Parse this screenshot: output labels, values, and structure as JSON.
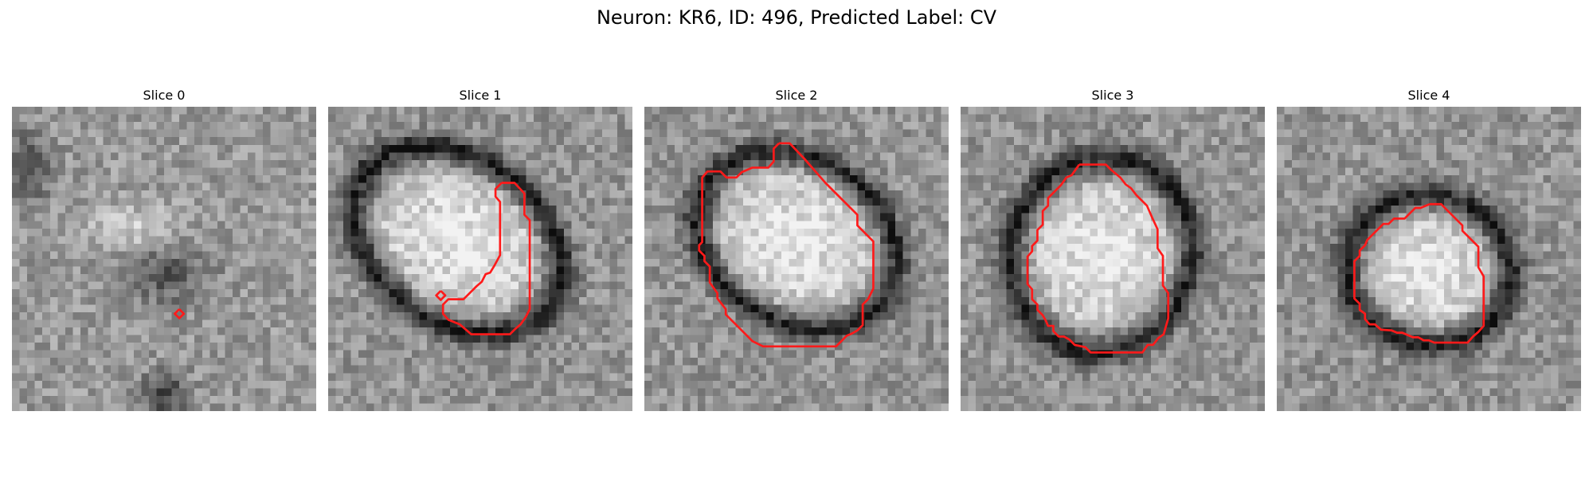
{
  "title": "Neuron: KR6, ID: 496, Predicted Label: CV",
  "contour_color": "#ff1a1a",
  "slices": [
    {
      "title": "Slice 0",
      "contour": [
        [
          [
            22.0,
            26.6
          ],
          [
            22.6,
            27.2
          ],
          [
            22.0,
            27.8
          ],
          [
            21.4,
            27.2
          ],
          [
            22.0,
            26.6
          ]
        ]
      ]
    },
    {
      "title": "Slice 1",
      "contour": [
        [
          [
            22.8,
            10.0
          ],
          [
            24.5,
            10.0
          ],
          [
            25.8,
            11.4
          ],
          [
            25.8,
            14.2
          ],
          [
            26.5,
            14.9
          ],
          [
            26.5,
            26.6
          ],
          [
            26.0,
            27.6
          ],
          [
            25.3,
            28.6
          ],
          [
            24.6,
            29.2
          ],
          [
            23.9,
            29.9
          ],
          [
            18.8,
            29.9
          ],
          [
            17.3,
            28.6
          ],
          [
            15.8,
            28.0
          ],
          [
            15.1,
            27.2
          ],
          [
            15.1,
            26.0
          ],
          [
            15.8,
            25.3
          ],
          [
            17.8,
            25.3
          ],
          [
            18.8,
            24.3
          ],
          [
            19.5,
            23.6
          ],
          [
            20.2,
            23.0
          ],
          [
            20.7,
            22.0
          ],
          [
            21.3,
            21.8
          ],
          [
            21.9,
            20.8
          ],
          [
            22.6,
            19.5
          ],
          [
            22.6,
            12.5
          ],
          [
            22.0,
            11.8
          ],
          [
            22.0,
            10.8
          ],
          [
            22.8,
            10.0
          ]
        ],
        [
          [
            14.8,
            24.2
          ],
          [
            15.4,
            24.8
          ],
          [
            14.8,
            25.4
          ],
          [
            14.2,
            24.8
          ],
          [
            14.8,
            24.2
          ]
        ]
      ]
    },
    {
      "title": "Slice 2",
      "contour": [
        [
          [
            17.7,
            4.8
          ],
          [
            19.1,
            4.8
          ],
          [
            21.0,
            6.8
          ],
          [
            23.8,
            10.0
          ],
          [
            25.2,
            11.4
          ],
          [
            28.0,
            14.2
          ],
          [
            28.0,
            15.6
          ],
          [
            30.1,
            17.7
          ],
          [
            30.1,
            23.9
          ],
          [
            29.4,
            25.3
          ],
          [
            28.7,
            26.0
          ],
          [
            28.7,
            28.7
          ],
          [
            28.0,
            29.4
          ],
          [
            27.3,
            29.8
          ],
          [
            26.6,
            30.1
          ],
          [
            25.9,
            30.8
          ],
          [
            25.2,
            31.5
          ],
          [
            19.5,
            31.5
          ],
          [
            15.6,
            31.5
          ],
          [
            14.2,
            30.8
          ],
          [
            13.5,
            30.1
          ],
          [
            12.1,
            28.7
          ],
          [
            11.4,
            28.0
          ],
          [
            10.7,
            27.3
          ],
          [
            10.7,
            26.6
          ],
          [
            9.6,
            25.2
          ],
          [
            9.6,
            24.5
          ],
          [
            8.6,
            23.1
          ],
          [
            8.6,
            21.0
          ],
          [
            7.9,
            20.3
          ],
          [
            7.9,
            19.6
          ],
          [
            7.2,
            18.9
          ],
          [
            7.2,
            18.2
          ],
          [
            7.6,
            17.8
          ],
          [
            7.6,
            9.3
          ],
          [
            8.3,
            8.5
          ],
          [
            10.0,
            8.5
          ],
          [
            10.8,
            9.3
          ],
          [
            12.1,
            9.3
          ],
          [
            12.8,
            8.6
          ],
          [
            13.5,
            8.3
          ],
          [
            14.2,
            8.0
          ],
          [
            16.3,
            8.0
          ],
          [
            17.0,
            7.2
          ],
          [
            17.0,
            5.5
          ],
          [
            17.7,
            4.8
          ]
        ]
      ]
    },
    {
      "title": "Slice 3",
      "contour": [
        [
          [
            15.6,
            7.6
          ],
          [
            19.1,
            7.6
          ],
          [
            19.8,
            8.3
          ],
          [
            21.0,
            9.3
          ],
          [
            21.7,
            10.2
          ],
          [
            22.4,
            10.7
          ],
          [
            23.1,
            11.6
          ],
          [
            24.5,
            13.0
          ],
          [
            25.2,
            14.6
          ],
          [
            25.9,
            16.1
          ],
          [
            25.9,
            18.6
          ],
          [
            26.6,
            19.6
          ],
          [
            26.6,
            23.5
          ],
          [
            27.3,
            24.5
          ],
          [
            27.3,
            27.8
          ],
          [
            26.7,
            29.9
          ],
          [
            26.0,
            30.4
          ],
          [
            25.3,
            31.3
          ],
          [
            24.6,
            31.3
          ],
          [
            23.9,
            32.3
          ],
          [
            19.9,
            32.3
          ],
          [
            17.1,
            32.3
          ],
          [
            16.4,
            31.6
          ],
          [
            15.0,
            31.3
          ],
          [
            14.3,
            30.6
          ],
          [
            13.6,
            30.2
          ],
          [
            12.9,
            30.2
          ],
          [
            12.2,
            29.5
          ],
          [
            12.2,
            28.8
          ],
          [
            11.5,
            28.8
          ],
          [
            11.2,
            28.1
          ],
          [
            10.8,
            27.4
          ],
          [
            10.1,
            26.7
          ],
          [
            10.1,
            26.0
          ],
          [
            9.4,
            25.3
          ],
          [
            9.4,
            24.0
          ],
          [
            8.8,
            23.3
          ],
          [
            8.8,
            19.7
          ],
          [
            9.4,
            19.0
          ],
          [
            9.4,
            18.3
          ],
          [
            10.1,
            17.6
          ],
          [
            10.1,
            16.2
          ],
          [
            10.8,
            15.5
          ],
          [
            10.8,
            13.7
          ],
          [
            11.5,
            13.0
          ],
          [
            11.5,
            12.0
          ],
          [
            12.2,
            11.3
          ],
          [
            13.2,
            10.3
          ],
          [
            13.9,
            9.3
          ],
          [
            14.6,
            9.0
          ],
          [
            15.6,
            7.6
          ]
        ]
      ]
    },
    {
      "title": "Slice 4",
      "contour": [
        [
          [
            20.1,
            12.8
          ],
          [
            21.6,
            12.8
          ],
          [
            22.3,
            13.5
          ],
          [
            23.0,
            14.2
          ],
          [
            23.7,
            14.9
          ],
          [
            24.4,
            15.6
          ],
          [
            24.4,
            16.3
          ],
          [
            25.1,
            17.0
          ],
          [
            25.8,
            17.7
          ],
          [
            26.5,
            18.4
          ],
          [
            26.5,
            21.1
          ],
          [
            27.2,
            22.3
          ],
          [
            27.2,
            26.1
          ],
          [
            27.2,
            28.8
          ],
          [
            26.5,
            29.6
          ],
          [
            25.8,
            30.2
          ],
          [
            25.1,
            31.0
          ],
          [
            21.4,
            31.0
          ],
          [
            20.7,
            31.0
          ],
          [
            20.0,
            30.7
          ],
          [
            19.3,
            30.7
          ],
          [
            18.6,
            30.3
          ],
          [
            17.9,
            30.3
          ],
          [
            17.2,
            30.0
          ],
          [
            16.5,
            29.7
          ],
          [
            15.8,
            29.7
          ],
          [
            15.1,
            29.4
          ],
          [
            13.7,
            29.3
          ],
          [
            12.9,
            28.6
          ],
          [
            12.2,
            28.6
          ],
          [
            11.6,
            27.9
          ],
          [
            11.6,
            27.2
          ],
          [
            10.9,
            26.7
          ],
          [
            10.9,
            25.9
          ],
          [
            10.2,
            25.2
          ],
          [
            10.2,
            21.8
          ],
          [
            10.2,
            20.3
          ],
          [
            10.9,
            19.6
          ],
          [
            10.9,
            18.9
          ],
          [
            11.6,
            18.2
          ],
          [
            11.9,
            17.5
          ],
          [
            12.6,
            16.8
          ],
          [
            13.3,
            16.1
          ],
          [
            14.0,
            15.4
          ],
          [
            14.7,
            15.4
          ],
          [
            15.4,
            14.7
          ],
          [
            16.8,
            14.7
          ],
          [
            17.5,
            14.0
          ],
          [
            18.2,
            13.3
          ],
          [
            18.9,
            13.3
          ],
          [
            20.1,
            12.8
          ]
        ]
      ]
    }
  ]
}
